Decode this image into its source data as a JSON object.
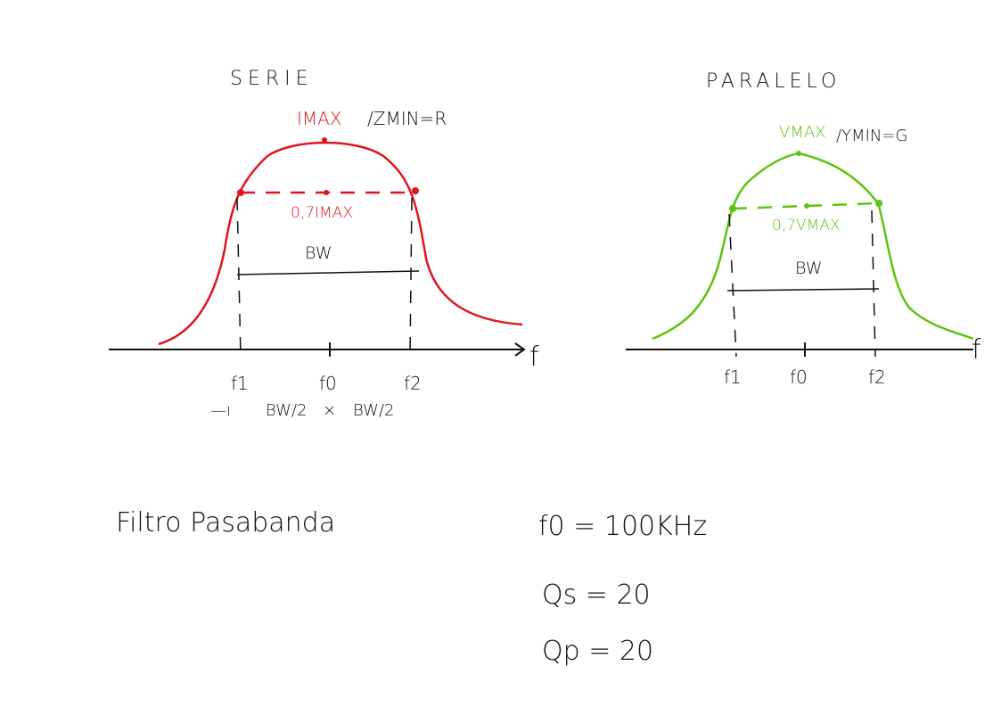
{
  "colors": {
    "serie": "#e0141e",
    "paralelo": "#5ec40f",
    "ink": "#111111"
  },
  "serie": {
    "title": "SERIE",
    "peak_label": "IMAX",
    "peak_label_rest": "/ZMIN=R",
    "level_label": "0,7IMAX",
    "bw_label": "BW",
    "axis_label": "f",
    "ticks": [
      "f1",
      "f0",
      "f2"
    ],
    "half_bw": [
      "BW/2",
      "BW/2"
    ]
  },
  "paralelo": {
    "title": "PARALELO",
    "peak_label": "VMAX",
    "peak_label_rest": "/YMIN=G",
    "level_label": "0,7VMAX",
    "bw_label": "BW",
    "axis_label": "f",
    "ticks": [
      "f1",
      "f0",
      "f2"
    ]
  },
  "notes": {
    "filter_name": "Filtro Pasabanda",
    "f0": "f0 = 100KHz",
    "qs": "Qs = 20",
    "qp": "Qp = 20"
  }
}
